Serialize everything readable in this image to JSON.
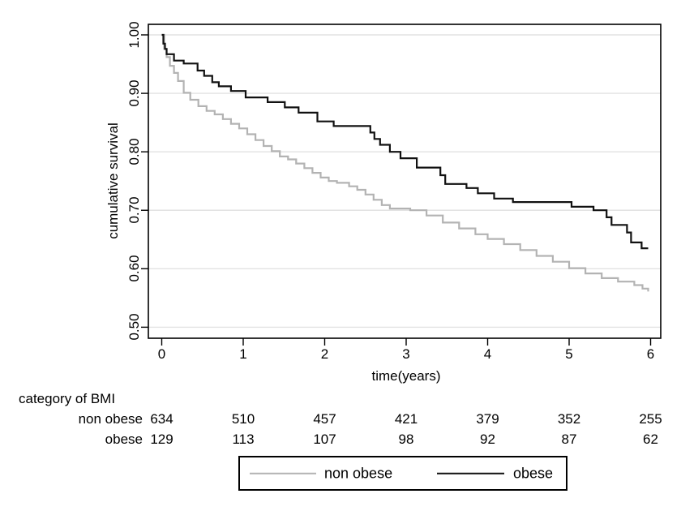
{
  "colors": {
    "background": "#ffffff",
    "gridline": "#e2e2e2",
    "plot_border": "#000000",
    "text": "#000000",
    "non_obese": "#b3b3b3",
    "obese": "#111111"
  },
  "chart_data": {
    "type": "line",
    "subtype": "kaplan-meier-step",
    "title": "",
    "xlabel": "time(years)",
    "ylabel": "cumulative survival",
    "xlim": [
      0,
      6
    ],
    "ylim": [
      0.5,
      1.0
    ],
    "grid": "horizontal",
    "x_ticks": [
      0,
      1,
      2,
      3,
      4,
      5,
      6
    ],
    "y_ticks": [
      "1.00",
      "0.90",
      "0.80",
      "0.70",
      "0.60",
      "0.50"
    ],
    "y_tick_values": [
      1.0,
      0.9,
      0.8,
      0.7,
      0.6,
      0.5
    ],
    "legend_position": "bottom",
    "series": [
      {
        "name": "non obese",
        "color": "#b3b3b3",
        "points": [
          [
            0,
            1.0
          ],
          [
            0.03,
            0.976
          ],
          [
            0.06,
            0.962
          ],
          [
            0.1,
            0.947
          ],
          [
            0.15,
            0.935
          ],
          [
            0.2,
            0.921
          ],
          [
            0.27,
            0.901
          ],
          [
            0.35,
            0.889
          ],
          [
            0.45,
            0.878
          ],
          [
            0.55,
            0.87
          ],
          [
            0.65,
            0.864
          ],
          [
            0.75,
            0.856
          ],
          [
            0.85,
            0.848
          ],
          [
            0.95,
            0.84
          ],
          [
            1.05,
            0.83
          ],
          [
            1.15,
            0.82
          ],
          [
            1.25,
            0.81
          ],
          [
            1.35,
            0.801
          ],
          [
            1.45,
            0.792
          ],
          [
            1.55,
            0.787
          ],
          [
            1.65,
            0.78
          ],
          [
            1.75,
            0.772
          ],
          [
            1.85,
            0.764
          ],
          [
            1.95,
            0.756
          ],
          [
            2.05,
            0.75
          ],
          [
            2.15,
            0.747
          ],
          [
            2.3,
            0.741
          ],
          [
            2.4,
            0.735
          ],
          [
            2.5,
            0.727
          ],
          [
            2.6,
            0.718
          ],
          [
            2.7,
            0.709
          ],
          [
            2.8,
            0.703
          ],
          [
            3.05,
            0.7
          ],
          [
            3.25,
            0.691
          ],
          [
            3.45,
            0.679
          ],
          [
            3.65,
            0.669
          ],
          [
            3.85,
            0.659
          ],
          [
            4.0,
            0.651
          ],
          [
            4.2,
            0.642
          ],
          [
            4.4,
            0.632
          ],
          [
            4.6,
            0.622
          ],
          [
            4.8,
            0.612
          ],
          [
            5.0,
            0.601
          ],
          [
            5.2,
            0.592
          ],
          [
            5.4,
            0.584
          ],
          [
            5.6,
            0.578
          ],
          [
            5.8,
            0.572
          ],
          [
            5.9,
            0.566
          ],
          [
            5.97,
            0.561
          ]
        ]
      },
      {
        "name": "obese",
        "color": "#111111",
        "points": [
          [
            0,
            1.0
          ],
          [
            0.02,
            0.985
          ],
          [
            0.04,
            0.976
          ],
          [
            0.06,
            0.967
          ],
          [
            0.15,
            0.956
          ],
          [
            0.27,
            0.951
          ],
          [
            0.44,
            0.939
          ],
          [
            0.52,
            0.93
          ],
          [
            0.62,
            0.919
          ],
          [
            0.7,
            0.912
          ],
          [
            0.85,
            0.904
          ],
          [
            1.03,
            0.893
          ],
          [
            1.3,
            0.885
          ],
          [
            1.51,
            0.876
          ],
          [
            1.68,
            0.867
          ],
          [
            1.91,
            0.852
          ],
          [
            2.11,
            0.844
          ],
          [
            2.56,
            0.833
          ],
          [
            2.61,
            0.822
          ],
          [
            2.68,
            0.812
          ],
          [
            2.8,
            0.8
          ],
          [
            2.93,
            0.789
          ],
          [
            3.13,
            0.773
          ],
          [
            3.42,
            0.76
          ],
          [
            3.48,
            0.745
          ],
          [
            3.74,
            0.738
          ],
          [
            3.88,
            0.729
          ],
          [
            4.08,
            0.72
          ],
          [
            4.31,
            0.714
          ],
          [
            5.03,
            0.706
          ],
          [
            5.3,
            0.7
          ],
          [
            5.46,
            0.688
          ],
          [
            5.52,
            0.675
          ],
          [
            5.71,
            0.662
          ],
          [
            5.76,
            0.645
          ],
          [
            5.89,
            0.635
          ],
          [
            5.97,
            0.635
          ]
        ]
      }
    ],
    "risk_table": {
      "title": "category of BMI",
      "times": [
        0,
        1,
        2,
        3,
        4,
        5,
        6
      ],
      "rows": [
        {
          "label": "non obese",
          "counts": [
            634,
            510,
            457,
            421,
            379,
            352,
            255
          ]
        },
        {
          "label": "obese",
          "counts": [
            129,
            113,
            107,
            98,
            92,
            87,
            62
          ]
        }
      ]
    }
  },
  "legend": {
    "items": [
      {
        "label": "non obese",
        "color": "#b3b3b3"
      },
      {
        "label": "obese",
        "color": "#111111"
      }
    ]
  }
}
